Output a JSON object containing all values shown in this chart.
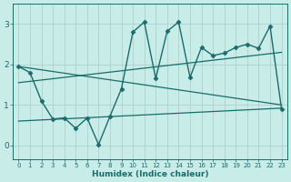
{
  "xlabel": "Humidex (Indice chaleur)",
  "ylabel": "",
  "xlim": [
    -0.5,
    23.5
  ],
  "ylim": [
    -0.35,
    3.5
  ],
  "yticks": [
    0,
    1,
    2,
    3
  ],
  "xticks": [
    0,
    1,
    2,
    3,
    4,
    5,
    6,
    7,
    8,
    9,
    10,
    11,
    12,
    13,
    14,
    15,
    16,
    17,
    18,
    19,
    20,
    21,
    22,
    23
  ],
  "background_color": "#c8ece8",
  "grid_color": "#b0d0cc",
  "line_color": "#1a6b6b",
  "main_series": {
    "x": [
      0,
      1,
      2,
      3,
      4,
      5,
      6,
      7,
      8,
      9,
      10,
      11,
      12,
      13,
      14,
      15,
      16,
      17,
      18,
      19,
      20,
      21,
      22,
      23
    ],
    "y": [
      1.95,
      1.8,
      1.1,
      0.65,
      0.68,
      0.42,
      0.68,
      0.02,
      0.72,
      1.4,
      2.8,
      3.05,
      1.65,
      2.82,
      3.05,
      1.68,
      2.42,
      2.22,
      2.28,
      2.42,
      2.5,
      2.4,
      2.95,
      0.9
    ]
  },
  "reg_lines": [
    {
      "x": [
        0,
        23
      ],
      "y": [
        1.95,
        1.0
      ]
    },
    {
      "x": [
        0,
        23
      ],
      "y": [
        1.55,
        2.3
      ]
    },
    {
      "x": [
        0,
        23
      ],
      "y": [
        0.6,
        0.92
      ]
    }
  ]
}
